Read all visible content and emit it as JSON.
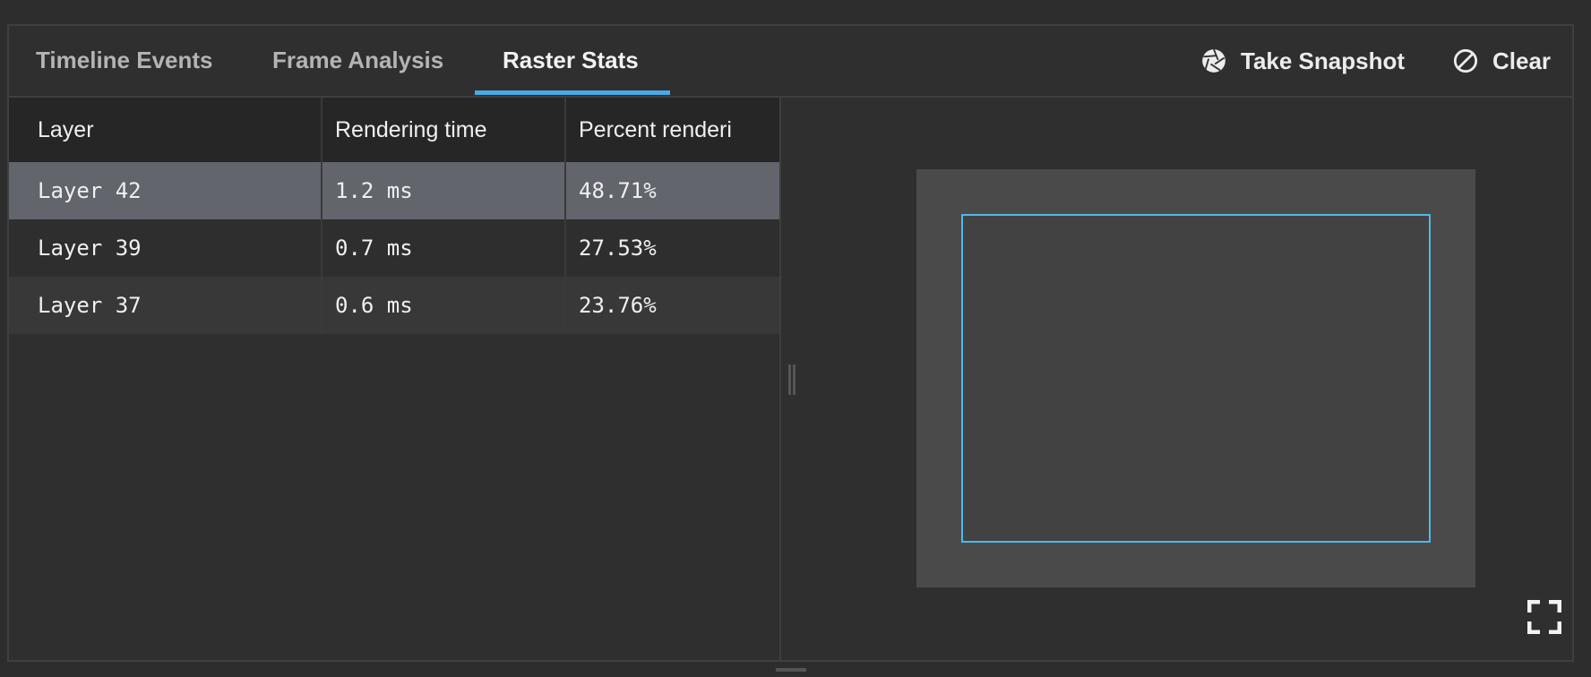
{
  "tabs": [
    {
      "label": "Timeline Events",
      "active": false
    },
    {
      "label": "Frame Analysis",
      "active": false
    },
    {
      "label": "Raster Stats",
      "active": true
    }
  ],
  "actions": {
    "snapshot": {
      "label": "Take Snapshot",
      "icon": "camera-shutter-icon"
    },
    "clear": {
      "label": "Clear",
      "icon": "block-icon"
    }
  },
  "table": {
    "columns": [
      "Layer",
      "Rendering time",
      "Percent renderi"
    ],
    "rows": [
      {
        "layer": "Layer 42",
        "time": "1.2 ms",
        "percent": "48.71%",
        "selected": true
      },
      {
        "layer": "Layer 39",
        "time": "0.7 ms",
        "percent": "27.53%",
        "selected": false
      },
      {
        "layer": "Layer 37",
        "time": "0.6 ms",
        "percent": "23.76%",
        "selected": false
      }
    ]
  },
  "preview": {
    "highlight_color": "#4fb8ea",
    "fullscreen_icon": "fullscreen-icon"
  },
  "colors": {
    "accent": "#4aa8e8",
    "selected_row": "#62656c"
  }
}
